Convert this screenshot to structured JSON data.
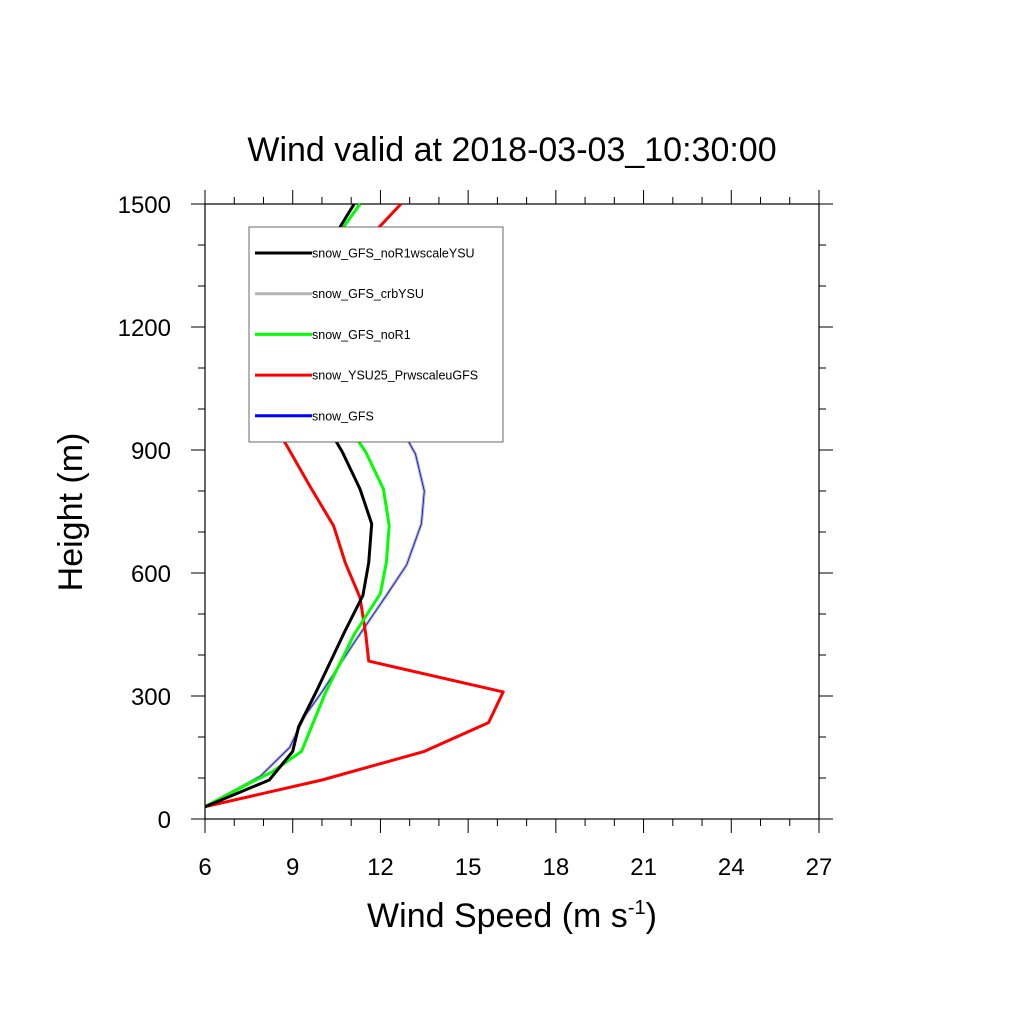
{
  "chart_data": {
    "type": "line",
    "title": "Wind valid at 2018-03-03_10:30:00",
    "xlabel": "Wind Speed (m s",
    "xlabel_sup": "-1",
    "xlabel_close": ")",
    "ylabel": "Height (m)",
    "xlim": [
      6,
      27
    ],
    "ylim": [
      0,
      1500
    ],
    "xticks": [
      6,
      9,
      12,
      15,
      18,
      21,
      24,
      27
    ],
    "yticks": [
      0,
      300,
      600,
      900,
      1200,
      1500
    ],
    "grid": false,
    "legend_position": "top-left",
    "series": [
      {
        "name": "snow_GFS_noR1wscaleYSU",
        "color": "#000000",
        "points": [
          [
            6.0,
            30
          ],
          [
            8.2,
            95
          ],
          [
            9.0,
            165
          ],
          [
            9.2,
            225
          ],
          [
            9.8,
            310
          ],
          [
            10.8,
            460
          ],
          [
            11.4,
            545
          ],
          [
            11.6,
            625
          ],
          [
            11.7,
            720
          ],
          [
            11.3,
            805
          ],
          [
            10.7,
            895
          ],
          [
            10.0,
            980
          ],
          [
            9.2,
            1085
          ],
          [
            8.9,
            1155
          ],
          [
            8.9,
            1210
          ],
          [
            9.1,
            1280
          ],
          [
            10.5,
            1430
          ],
          [
            11.1,
            1500
          ]
        ]
      },
      {
        "name": "snow_GFS_crbYSU",
        "color": "#b4b4b4",
        "points": [
          [
            6.0,
            30
          ],
          [
            7.9,
            105
          ],
          [
            8.9,
            175
          ],
          [
            9.4,
            250
          ],
          [
            10.0,
            310
          ],
          [
            11.1,
            430
          ],
          [
            12.2,
            545
          ],
          [
            12.9,
            620
          ],
          [
            13.4,
            720
          ],
          [
            13.5,
            800
          ],
          [
            13.2,
            890
          ],
          [
            12.5,
            980
          ],
          [
            11.5,
            1080
          ],
          [
            10.8,
            1150
          ],
          [
            10.2,
            1215
          ],
          [
            9.9,
            1310
          ],
          [
            10.5,
            1420
          ],
          [
            11.3,
            1500
          ]
        ]
      },
      {
        "name": "snow_GFS_noR1",
        "color": "#00ff00",
        "points": [
          [
            6.0,
            30
          ],
          [
            7.6,
            90
          ],
          [
            8.3,
            115
          ],
          [
            9.3,
            165
          ],
          [
            10.1,
            305
          ],
          [
            11.1,
            450
          ],
          [
            12.0,
            550
          ],
          [
            12.2,
            625
          ],
          [
            12.3,
            715
          ],
          [
            12.1,
            805
          ],
          [
            11.5,
            895
          ],
          [
            10.6,
            990
          ],
          [
            9.5,
            1085
          ],
          [
            9.0,
            1150
          ],
          [
            8.9,
            1210
          ],
          [
            9.0,
            1285
          ],
          [
            10.5,
            1420
          ],
          [
            11.3,
            1500
          ]
        ]
      },
      {
        "name": "snow_YSU25_PrwscaleuGFS",
        "color": "#ff0000",
        "points": [
          [
            6.0,
            30
          ],
          [
            10.0,
            95
          ],
          [
            13.5,
            165
          ],
          [
            15.7,
            235
          ],
          [
            16.2,
            310
          ],
          [
            11.6,
            385
          ],
          [
            11.5,
            450
          ],
          [
            11.3,
            540
          ],
          [
            10.8,
            625
          ],
          [
            10.4,
            715
          ],
          [
            9.6,
            810
          ],
          [
            8.8,
            910
          ],
          [
            8.2,
            980
          ],
          [
            8.0,
            1075
          ],
          [
            8.2,
            1120
          ],
          [
            8.8,
            1180
          ],
          [
            9.8,
            1280
          ],
          [
            12.7,
            1500
          ]
        ]
      },
      {
        "name": "snow_GFS",
        "color": "#0000ff",
        "points": [
          [
            6.0,
            30
          ],
          [
            7.9,
            105
          ],
          [
            8.9,
            175
          ],
          [
            9.4,
            250
          ],
          [
            10.0,
            310
          ],
          [
            11.1,
            430
          ],
          [
            12.2,
            545
          ],
          [
            12.9,
            620
          ],
          [
            13.4,
            720
          ],
          [
            13.5,
            800
          ],
          [
            13.2,
            890
          ],
          [
            12.5,
            980
          ],
          [
            11.5,
            1080
          ],
          [
            10.8,
            1150
          ],
          [
            10.2,
            1215
          ],
          [
            9.9,
            1310
          ],
          [
            10.5,
            1420
          ],
          [
            11.3,
            1500
          ]
        ]
      }
    ]
  }
}
